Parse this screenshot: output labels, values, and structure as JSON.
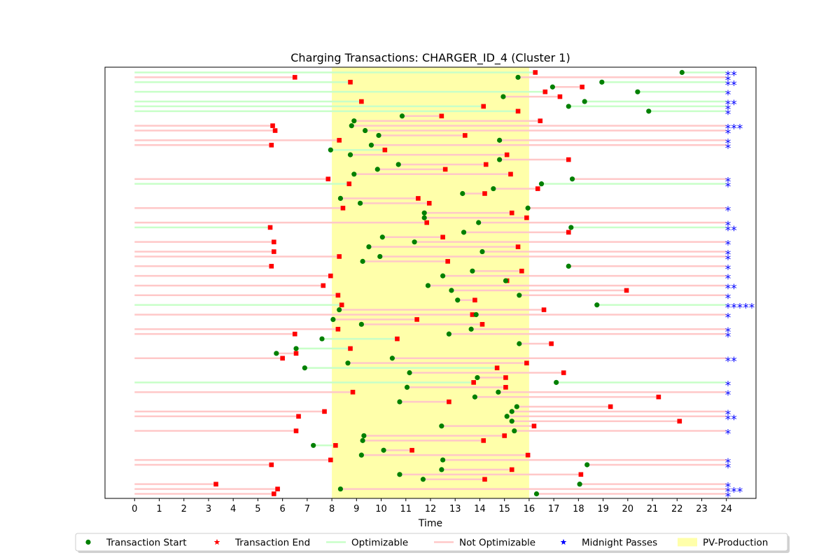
{
  "chart_data": {
    "type": "timeline",
    "title": "Charging Transactions: CHARGER_ID_4 (Cluster 1)",
    "xlabel": "Time",
    "xlim": [
      -1.2,
      25.2
    ],
    "xticks": [
      0,
      1,
      2,
      3,
      4,
      5,
      6,
      7,
      8,
      9,
      10,
      11,
      12,
      13,
      14,
      15,
      16,
      17,
      18,
      19,
      20,
      21,
      22,
      23,
      24
    ],
    "pv_production": [
      8,
      16
    ],
    "colors": {
      "start": "#008000",
      "end": "#ff0000",
      "optimizable": "#c8ffc8",
      "not_optimizable": "#ffc8c8",
      "midnight": "#0000ff",
      "pv": "#ffffaa"
    },
    "legend": {
      "placement": "bottom-center",
      "entries": [
        {
          "key": "start",
          "label": "Transaction Start"
        },
        {
          "key": "end",
          "label": "Transaction End"
        },
        {
          "key": "optimizable",
          "label": "Optimizable"
        },
        {
          "key": "not_optimizable",
          "label": "Not Optimizable"
        },
        {
          "key": "midnight",
          "label": "Midnight Passes"
        },
        {
          "key": "pv",
          "label": "PV-Production"
        }
      ]
    },
    "transactions": [
      {
        "start": 22.2,
        "end": 16.25,
        "opt": true,
        "midnight": "**"
      },
      {
        "start": 15.55,
        "end": 6.5,
        "opt": false,
        "midnight": "*"
      },
      {
        "start": 18.95,
        "end": 8.75,
        "opt": true,
        "midnight": "**"
      },
      {
        "start": 16.95,
        "end": 18.15,
        "opt": false,
        "midnight": ""
      },
      {
        "start": 20.4,
        "end": 16.65,
        "opt": true,
        "midnight": "*"
      },
      {
        "start": 14.95,
        "end": 17.25,
        "opt": false,
        "midnight": ""
      },
      {
        "start": 18.25,
        "end": 9.2,
        "opt": true,
        "midnight": "**"
      },
      {
        "start": 17.6,
        "end": 14.15,
        "opt": true,
        "midnight": "*"
      },
      {
        "start": 20.85,
        "end": 15.55,
        "opt": true,
        "midnight": "*"
      },
      {
        "start": 10.85,
        "end": 12.45,
        "opt": false,
        "midnight": ""
      },
      {
        "start": 8.9,
        "end": 16.45,
        "opt": false,
        "midnight": ""
      },
      {
        "start": 8.8,
        "end": 5.6,
        "opt": false,
        "midnight": "***"
      },
      {
        "start": 9.35,
        "end": 5.7,
        "opt": false,
        "midnight": "*"
      },
      {
        "start": 9.9,
        "end": 13.4,
        "opt": false,
        "midnight": ""
      },
      {
        "start": 14.8,
        "end": 8.3,
        "opt": false,
        "midnight": "*"
      },
      {
        "start": 9.6,
        "end": 5.55,
        "opt": false,
        "midnight": "*"
      },
      {
        "start": 7.95,
        "end": 10.15,
        "opt": true,
        "midnight": ""
      },
      {
        "start": 8.75,
        "end": 15.1,
        "opt": false,
        "midnight": ""
      },
      {
        "start": 14.8,
        "end": 17.6,
        "opt": false,
        "midnight": ""
      },
      {
        "start": 10.7,
        "end": 14.25,
        "opt": false,
        "midnight": ""
      },
      {
        "start": 9.85,
        "end": 12.6,
        "opt": false,
        "midnight": ""
      },
      {
        "start": 8.9,
        "end": 15.25,
        "opt": false,
        "midnight": ""
      },
      {
        "start": 17.75,
        "end": 7.85,
        "opt": false,
        "midnight": "*"
      },
      {
        "start": 16.5,
        "end": 8.7,
        "opt": true,
        "midnight": "*"
      },
      {
        "start": 14.55,
        "end": 16.35,
        "opt": false,
        "midnight": ""
      },
      {
        "start": 13.3,
        "end": 14.2,
        "opt": false,
        "midnight": ""
      },
      {
        "start": 8.35,
        "end": 11.5,
        "opt": false,
        "midnight": ""
      },
      {
        "start": 9.15,
        "end": 11.95,
        "opt": false,
        "midnight": ""
      },
      {
        "start": 15.95,
        "end": 8.45,
        "opt": false,
        "midnight": "*"
      },
      {
        "start": 11.75,
        "end": 15.3,
        "opt": false,
        "midnight": ""
      },
      {
        "start": 11.75,
        "end": 15.9,
        "opt": false,
        "midnight": ""
      },
      {
        "start": 13.95,
        "end": 11.85,
        "opt": false,
        "midnight": "*"
      },
      {
        "start": 17.7,
        "end": 5.5,
        "opt": true,
        "midnight": "**"
      },
      {
        "start": 13.35,
        "end": 17.6,
        "opt": false,
        "midnight": ""
      },
      {
        "start": 10.05,
        "end": 12.5,
        "opt": false,
        "midnight": ""
      },
      {
        "start": 11.35,
        "end": 5.65,
        "opt": false,
        "midnight": "*"
      },
      {
        "start": 9.5,
        "end": 15.55,
        "opt": false,
        "midnight": ""
      },
      {
        "start": 14.1,
        "end": 5.65,
        "opt": false,
        "midnight": "*"
      },
      {
        "start": 9.95,
        "end": 8.3,
        "opt": false,
        "midnight": "*"
      },
      {
        "start": 9.25,
        "end": 12.7,
        "opt": false,
        "midnight": ""
      },
      {
        "start": 17.6,
        "end": 5.55,
        "opt": false,
        "midnight": "*"
      },
      {
        "start": 13.7,
        "end": 15.7,
        "opt": false,
        "midnight": ""
      },
      {
        "start": 12.5,
        "end": 7.95,
        "opt": false,
        "midnight": "*"
      },
      {
        "start": 15.05,
        "end": 15.1,
        "opt": false,
        "midnight": ""
      },
      {
        "start": 11.9,
        "end": 7.65,
        "opt": false,
        "midnight": "**"
      },
      {
        "start": 12.85,
        "end": 19.95,
        "opt": false,
        "midnight": ""
      },
      {
        "start": 15.6,
        "end": 8.25,
        "opt": false,
        "midnight": "*"
      },
      {
        "start": 13.1,
        "end": 13.8,
        "opt": false,
        "midnight": ""
      },
      {
        "start": 18.75,
        "end": 8.4,
        "opt": true,
        "midnight": "*****"
      },
      {
        "start": 8.3,
        "end": 16.6,
        "opt": false,
        "midnight": ""
      },
      {
        "start": 13.85,
        "end": 13.7,
        "opt": false,
        "midnight": "*"
      },
      {
        "start": 8.05,
        "end": 11.45,
        "opt": false,
        "midnight": ""
      },
      {
        "start": 9.2,
        "end": 14.1,
        "opt": false,
        "midnight": ""
      },
      {
        "start": 13.65,
        "end": 8.25,
        "opt": false,
        "midnight": "*"
      },
      {
        "start": 12.75,
        "end": 6.5,
        "opt": false,
        "midnight": "*"
      },
      {
        "start": 7.6,
        "end": 10.65,
        "opt": true,
        "midnight": ""
      },
      {
        "start": 15.6,
        "end": 16.9,
        "opt": false,
        "midnight": ""
      },
      {
        "start": 6.55,
        "end": 8.75,
        "opt": true,
        "midnight": ""
      },
      {
        "start": 5.75,
        "end": 6.55,
        "opt": false,
        "midnight": ""
      },
      {
        "start": 10.45,
        "end": 6.0,
        "opt": false,
        "midnight": "**"
      },
      {
        "start": 8.65,
        "end": 15.9,
        "opt": false,
        "midnight": ""
      },
      {
        "start": 6.9,
        "end": 14.7,
        "opt": true,
        "midnight": ""
      },
      {
        "start": 11.15,
        "end": 17.4,
        "opt": false,
        "midnight": ""
      },
      {
        "start": 13.9,
        "end": 15.05,
        "opt": false,
        "midnight": ""
      },
      {
        "start": 17.1,
        "end": 13.75,
        "opt": true,
        "midnight": "*"
      },
      {
        "start": 11.05,
        "end": 15.05,
        "opt": false,
        "midnight": ""
      },
      {
        "start": 14.75,
        "end": 8.85,
        "opt": false,
        "midnight": "*"
      },
      {
        "start": 13.8,
        "end": 21.25,
        "opt": false,
        "midnight": ""
      },
      {
        "start": 10.75,
        "end": 12.75,
        "opt": false,
        "midnight": ""
      },
      {
        "start": 15.5,
        "end": 19.3,
        "opt": false,
        "midnight": ""
      },
      {
        "start": 15.3,
        "end": 7.7,
        "opt": false,
        "midnight": "*"
      },
      {
        "start": 15.1,
        "end": 6.65,
        "opt": false,
        "midnight": "**"
      },
      {
        "start": 15.3,
        "end": 22.1,
        "opt": false,
        "midnight": ""
      },
      {
        "start": 12.45,
        "end": 16.2,
        "opt": false,
        "midnight": ""
      },
      {
        "start": 15.4,
        "end": 6.55,
        "opt": false,
        "midnight": "*"
      },
      {
        "start": 9.3,
        "end": 15.0,
        "opt": false,
        "midnight": ""
      },
      {
        "start": 9.25,
        "end": 14.15,
        "opt": false,
        "midnight": ""
      },
      {
        "start": 7.25,
        "end": 8.15,
        "opt": true,
        "midnight": ""
      },
      {
        "start": 10.1,
        "end": 11.25,
        "opt": false,
        "midnight": ""
      },
      {
        "start": 9.2,
        "end": 15.95,
        "opt": false,
        "midnight": ""
      },
      {
        "start": 12.5,
        "end": 7.95,
        "opt": false,
        "midnight": "*"
      },
      {
        "start": 18.35,
        "end": 5.55,
        "opt": false,
        "midnight": "*"
      },
      {
        "start": 12.45,
        "end": 15.3,
        "opt": false,
        "midnight": ""
      },
      {
        "start": 10.75,
        "end": 18.1,
        "opt": false,
        "midnight": ""
      },
      {
        "start": 11.7,
        "end": 14.2,
        "opt": false,
        "midnight": ""
      },
      {
        "start": 18.05,
        "end": 3.3,
        "opt": false,
        "midnight": "*"
      },
      {
        "start": 8.35,
        "end": 5.8,
        "opt": false,
        "midnight": "***"
      },
      {
        "start": 16.3,
        "end": 5.65,
        "opt": false,
        "midnight": "*"
      }
    ]
  }
}
